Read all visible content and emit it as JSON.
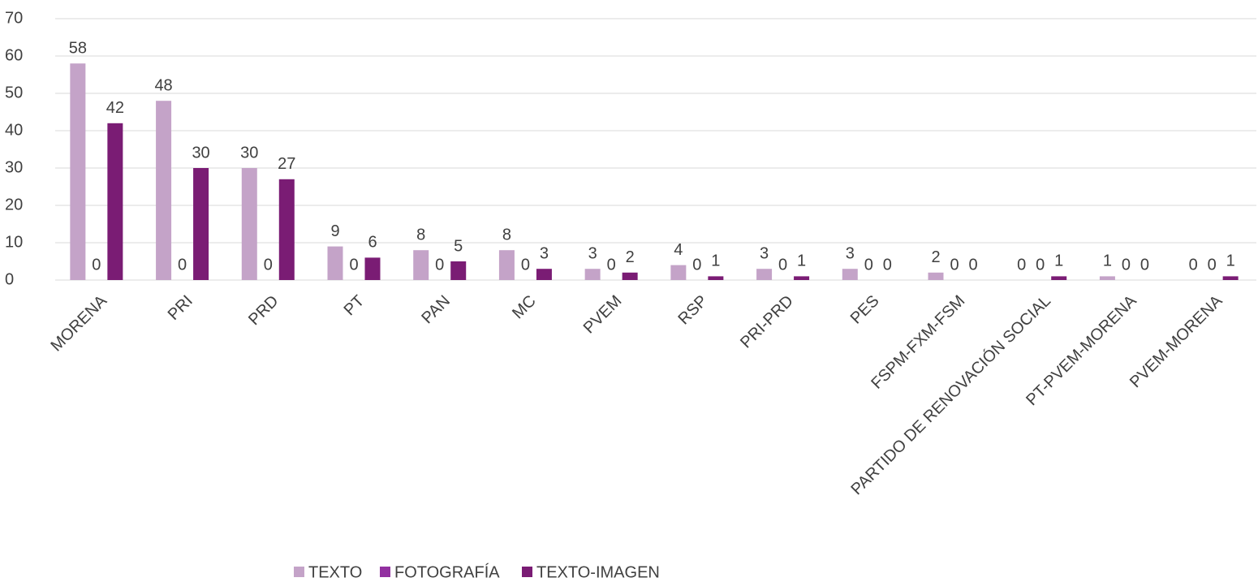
{
  "chart_data": {
    "type": "bar",
    "categories": [
      "MORENA",
      "PRI",
      "PRD",
      "PT",
      "PAN",
      "MC",
      "PVEM",
      "RSP",
      "PRI-PRD",
      "PES",
      "FSPM-FXM-FSM",
      "PARTIDO DE RENOVACIÓN SOCIAL",
      "PT-PVEM-MORENA",
      "PVEM-MORENA"
    ],
    "series": [
      {
        "name": "TEXTO",
        "color": "#c4a3c8",
        "values": [
          58,
          48,
          30,
          9,
          8,
          8,
          3,
          4,
          3,
          3,
          2,
          0,
          1,
          0
        ]
      },
      {
        "name": "FOTOGRAFÍA",
        "color": "#9230a0",
        "values": [
          0,
          0,
          0,
          0,
          0,
          0,
          0,
          0,
          0,
          0,
          0,
          0,
          0,
          0
        ]
      },
      {
        "name": "TEXTO-IMAGEN",
        "color": "#7a1c74",
        "values": [
          42,
          30,
          27,
          6,
          5,
          3,
          2,
          1,
          1,
          0,
          0,
          1,
          0,
          1
        ]
      }
    ],
    "ylim": [
      0,
      70
    ],
    "yticks": [
      0,
      10,
      20,
      30,
      40,
      50,
      60,
      70
    ],
    "grid": true,
    "legend": "bottom"
  }
}
